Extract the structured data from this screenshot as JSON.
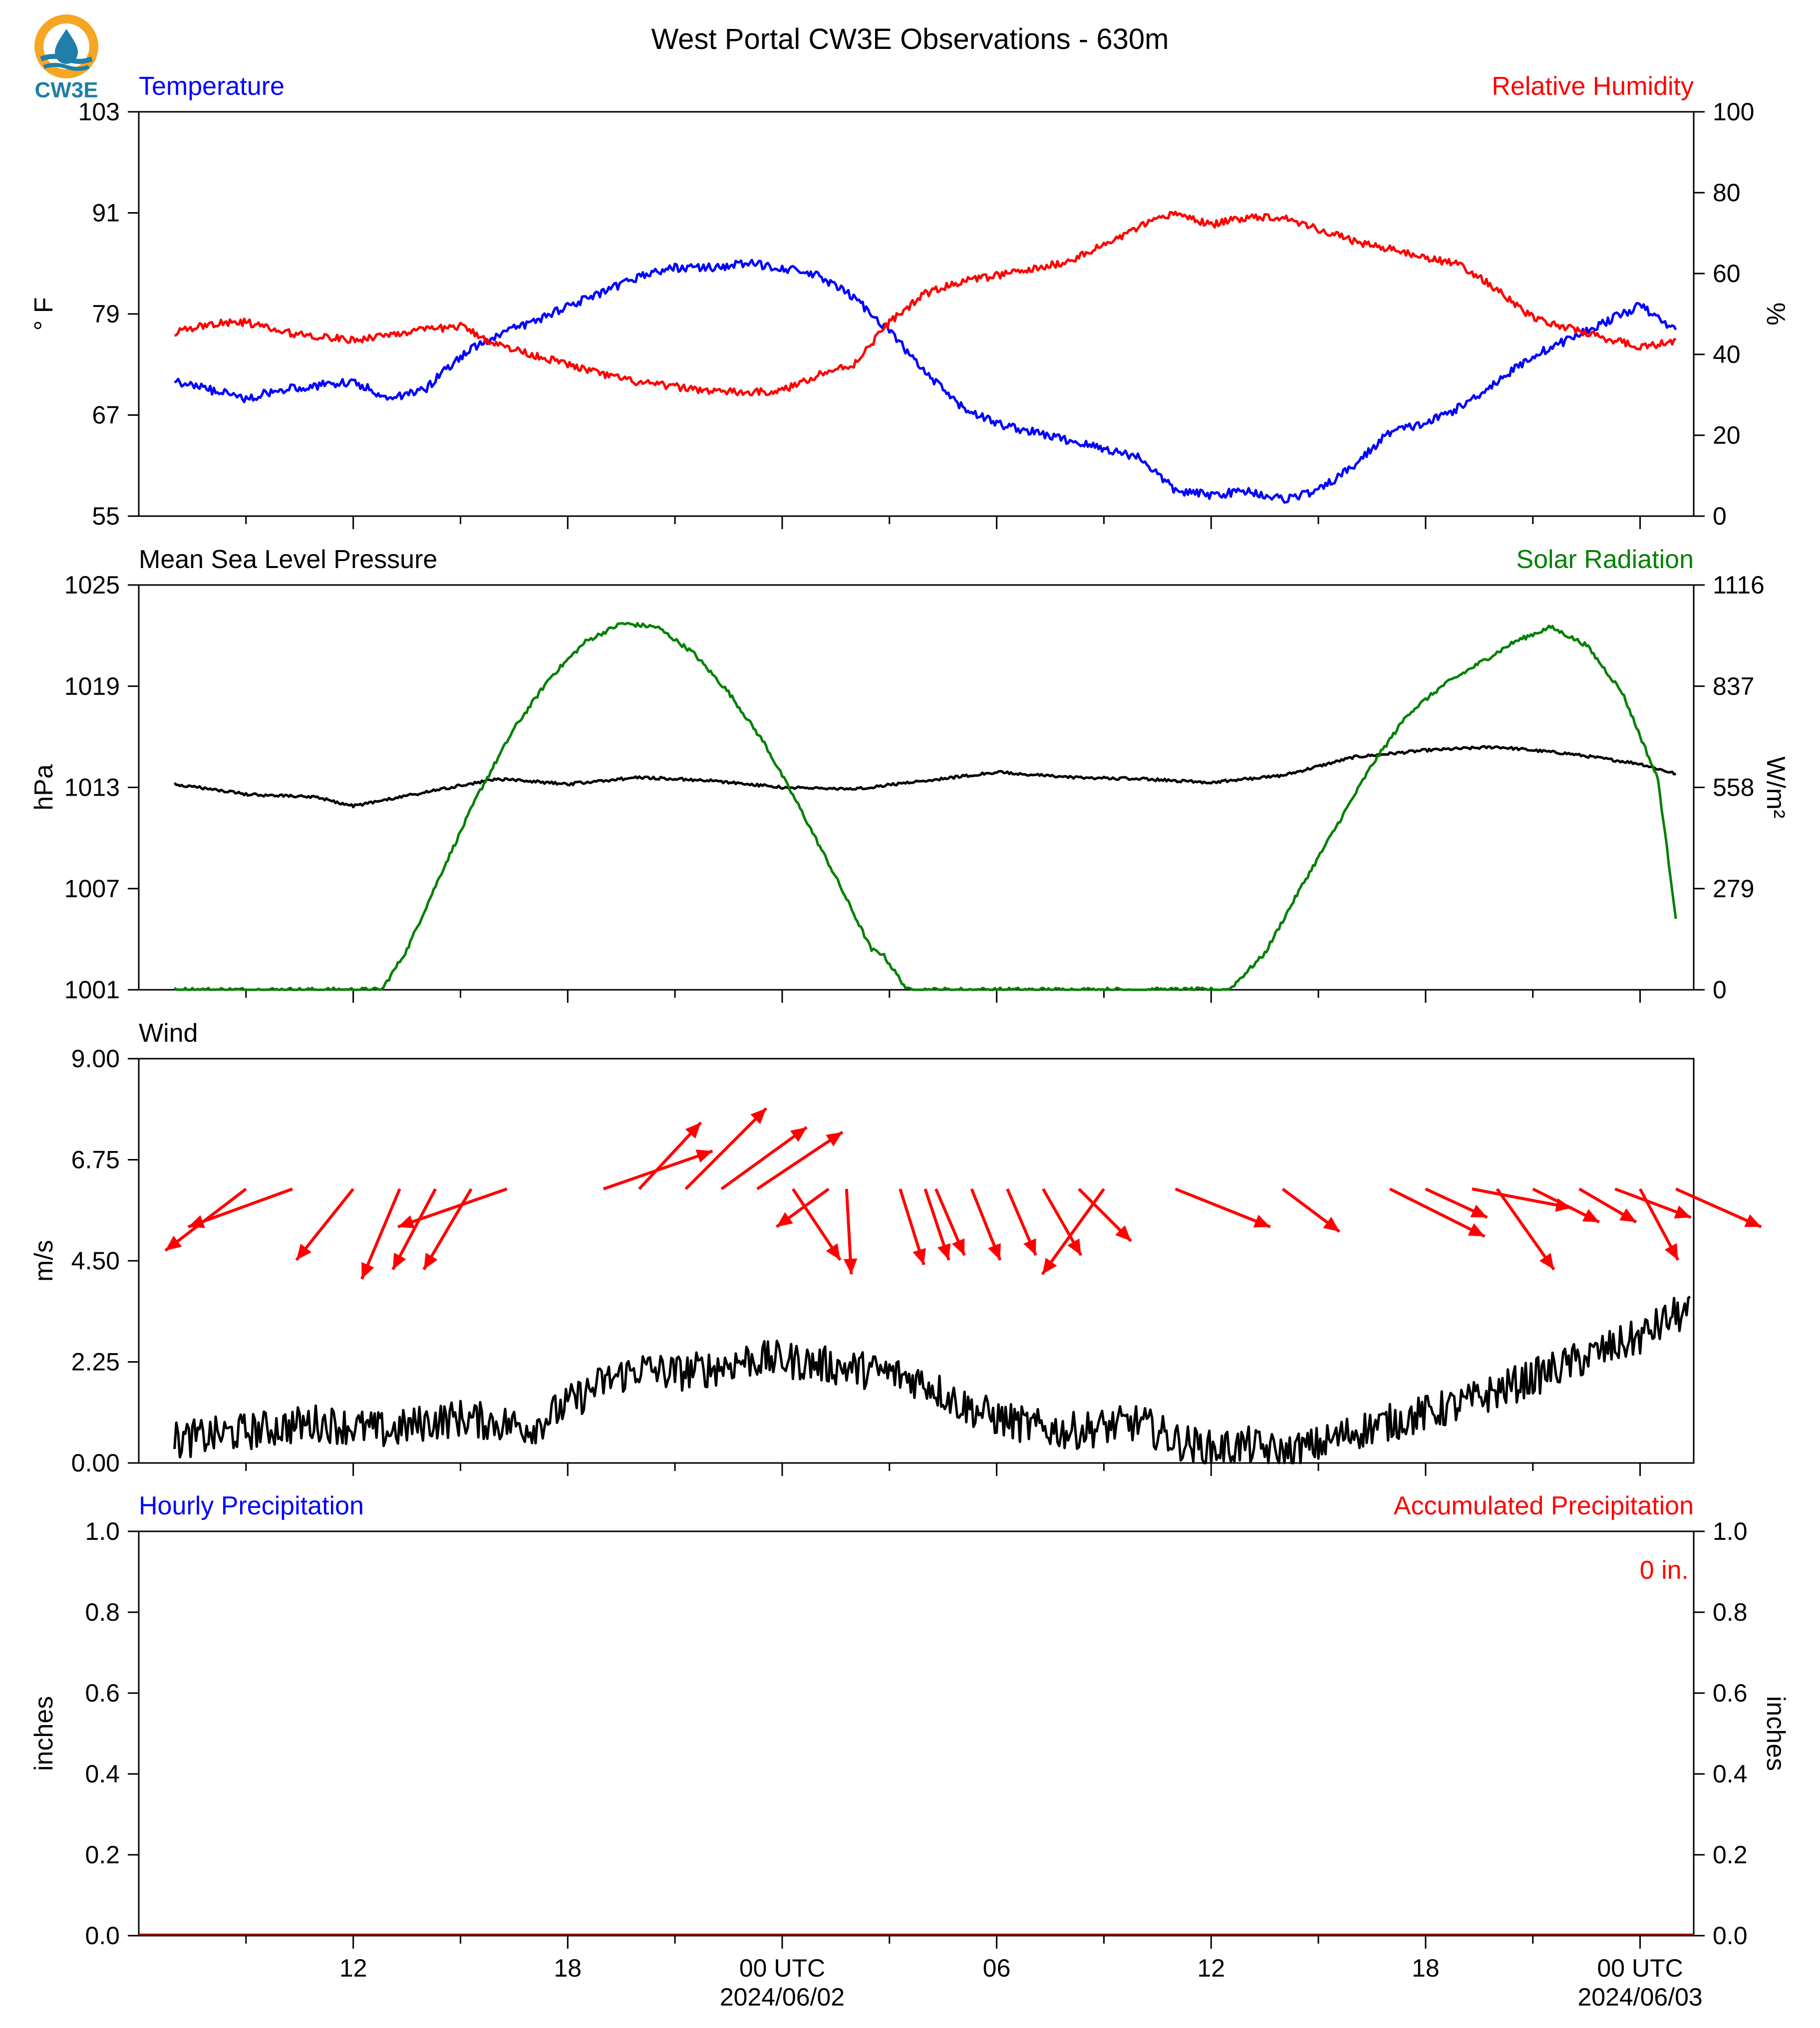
{
  "title": "West Portal CW3E Observations - 630m",
  "logo": {
    "text": "CW3E",
    "colors": {
      "ring": "#f5a623",
      "drop": "#1f7fa8"
    }
  },
  "colors": {
    "temperature": "#0000ff",
    "humidity": "#ff0000",
    "pressure": "#000000",
    "solar": "#008000",
    "wind": "#000000",
    "arrows": "#ff0000"
  },
  "x_axis": {
    "hours": [
      12,
      18,
      0,
      6,
      12,
      18,
      0
    ],
    "labels": [
      "12",
      "18",
      "00 UTC",
      "06",
      "12",
      "18",
      "00 UTC"
    ],
    "date_labels": [
      "",
      "",
      "2024/06/02",
      "",
      "",
      "",
      "2024/06/03"
    ]
  },
  "chart_data": [
    {
      "type": "line",
      "left_title": "Temperature",
      "right_title": "Relative Humidity",
      "ylabel": "° F",
      "ylabel_right": "%",
      "ylim": [
        55,
        103
      ],
      "yticks": [
        "55",
        "67",
        "79",
        "91",
        "103"
      ],
      "ylim_right": [
        0,
        100
      ],
      "yticks_right": [
        "0",
        "20",
        "40",
        "60",
        "80",
        "100"
      ],
      "x_hours": [
        7,
        8,
        9,
        10,
        11,
        12,
        13,
        14,
        15,
        16,
        17,
        18,
        19,
        20,
        21,
        22,
        23,
        24,
        25,
        26,
        27,
        28,
        29,
        30,
        31,
        32,
        33,
        34,
        35,
        36,
        37,
        38,
        39,
        40,
        41,
        42,
        43,
        44,
        45,
        46,
        47,
        48,
        49
      ],
      "series": [
        {
          "name": "Temperature",
          "axis": "left",
          "values": [
            71,
            70,
            69,
            70,
            70.5,
            71,
            69,
            70,
            74,
            76.5,
            78,
            80,
            81.5,
            83.5,
            84.5,
            84.5,
            85,
            84.5,
            83.5,
            81,
            77,
            72,
            68,
            66,
            65,
            64,
            63,
            62,
            58,
            57.5,
            58,
            57,
            58,
            61,
            65,
            66,
            68,
            71,
            74,
            76,
            78,
            80,
            77
          ]
        },
        {
          "name": "Relative Humidity",
          "axis": "right",
          "values": [
            45.5,
            47.5,
            48,
            45.5,
            44.5,
            43.5,
            45,
            46,
            47,
            42.5,
            40,
            37.5,
            35,
            33,
            32,
            31,
            30.5,
            31,
            35,
            37.5,
            48,
            55,
            58,
            59.5,
            61,
            63,
            67,
            71.5,
            75,
            72,
            74,
            74,
            71,
            68,
            66,
            64,
            62,
            56,
            49,
            46.5,
            44,
            42,
            43
          ]
        }
      ]
    },
    {
      "type": "line",
      "left_title": "Mean Sea Level Pressure",
      "right_title": "Solar Radiation",
      "ylabel": "hPa",
      "ylabel_right": "W/m²",
      "ylim": [
        1001,
        1025
      ],
      "yticks": [
        "1001",
        "1007",
        "1013",
        "1019",
        "1025"
      ],
      "ylim_right": [
        0,
        1116
      ],
      "yticks_right": [
        "0",
        "279",
        "558",
        "837",
        "1116"
      ],
      "series": [
        {
          "name": "Mean Sea Level Pressure",
          "axis": "left",
          "x_hours": [
            7,
            9,
            11,
            12,
            14,
            16,
            18,
            20,
            22,
            24,
            26,
            28,
            30,
            32,
            34,
            36,
            38,
            40,
            42,
            44,
            46,
            48,
            49
          ],
          "values": [
            1013.2,
            1012.6,
            1012.4,
            1011.9,
            1012.7,
            1013.5,
            1013.2,
            1013.6,
            1013.4,
            1013.0,
            1012.9,
            1013.4,
            1013.9,
            1013.6,
            1013.5,
            1013.3,
            1013.7,
            1014.8,
            1015.2,
            1015.4,
            1015.0,
            1014.4,
            1013.8
          ]
        },
        {
          "name": "Solar Radiation",
          "axis": "right",
          "x_hours": [
            7,
            12.8,
            13.5,
            14.5,
            15.5,
            16.5,
            17.5,
            18.5,
            19.5,
            20.5,
            21.5,
            22.5,
            23.5,
            24.5,
            25.5,
            26.5,
            26.8,
            27.5,
            28.2,
            29,
            30,
            31,
            32,
            33,
            33.8,
            34.5,
            35.5,
            36.5,
            37.5,
            38.5,
            39.5,
            40.5,
            41.5,
            42.5,
            43.5,
            44.5,
            45.5,
            46.5,
            47.5,
            48.5,
            49
          ],
          "values": [
            0,
            0,
            110,
            330,
            540,
            720,
            860,
            960,
            1010,
            1000,
            930,
            820,
            680,
            500,
            310,
            110,
            100,
            0,
            0,
            0,
            0,
            0,
            0,
            0,
            0,
            0,
            0,
            0,
            100,
            280,
            450,
            620,
            760,
            840,
            900,
            960,
            1000,
            950,
            820,
            580,
            200
          ]
        }
      ]
    },
    {
      "type": "line",
      "left_title": "Wind",
      "ylabel": "m/s",
      "ylim": [
        0,
        9
      ],
      "yticks": [
        "0.00",
        "2.25",
        "4.50",
        "6.75",
        "9.00"
      ],
      "series": [
        {
          "name": "Wind speed",
          "axis": "left",
          "x_hours": [
            7,
            8,
            9,
            10,
            11,
            12,
            13,
            14,
            15,
            16,
            17,
            18,
            19,
            20,
            21,
            22,
            23,
            24,
            25,
            26,
            27,
            28,
            29,
            30,
            31,
            32,
            33,
            34,
            35,
            36,
            37,
            38,
            39,
            40,
            41,
            42,
            43,
            44,
            45,
            46,
            47,
            48,
            49
          ],
          "values": [
            0.5,
            0.6,
            0.7,
            0.8,
            0.9,
            0.8,
            0.7,
            0.9,
            1.0,
            0.9,
            0.8,
            1.3,
            1.8,
            2.1,
            2.0,
            2.1,
            2.3,
            2.3,
            2.2,
            2.1,
            2.0,
            1.8,
            1.3,
            1.0,
            0.8,
            0.7,
            0.8,
            0.9,
            0.5,
            0.3,
            0.4,
            0.2,
            0.4,
            0.7,
            0.9,
            1.1,
            1.3,
            1.6,
            1.9,
            2.2,
            2.5,
            2.8,
            3.3
          ]
        }
      ],
      "arrows": {
        "x_hours": [
          9.0,
          10.3,
          12.0,
          13.3,
          14.3,
          15.3,
          16.3,
          19.0,
          20.0,
          21.3,
          22.3,
          23.3,
          24.3,
          25.3,
          25.8,
          27.3,
          28.0,
          28.3,
          29.3,
          30.3,
          31.3,
          32.3,
          33.0,
          35.0,
          38.0,
          41.0,
          42.0,
          43.3,
          44.0,
          45.0,
          46.3,
          47.3,
          48.0,
          49.0
        ],
        "u": [
          -1.7,
          -2.2,
          -1.2,
          -0.8,
          -0.9,
          -1.0,
          -2.3,
          2.3,
          1.3,
          1.7,
          1.8,
          1.8,
          1.0,
          -1.1,
          0.1,
          0.5,
          0.5,
          0.6,
          0.6,
          0.6,
          0.8,
          1.1,
          -1.3,
          2.0,
          1.2,
          2.0,
          1.3,
          2.1,
          1.2,
          1.4,
          1.2,
          1.6,
          0.8,
          1.8
        ],
        "v": [
          -1.3,
          -0.8,
          -1.5,
          -1.9,
          -1.7,
          -1.7,
          -0.8,
          0.8,
          1.4,
          1.7,
          1.3,
          1.2,
          -1.5,
          -0.8,
          -1.8,
          -1.6,
          -1.5,
          -1.4,
          -1.5,
          -1.4,
          -1.4,
          -1.1,
          -1.8,
          -0.8,
          -0.9,
          -1.0,
          -0.6,
          -0.4,
          -1.7,
          -0.7,
          -0.7,
          -0.6,
          -1.5,
          -0.8
        ],
        "units": "m/s"
      }
    },
    {
      "type": "bar",
      "left_title": "Hourly Precipitation",
      "right_title": "Accumulated Precipitation",
      "ylabel": "inches",
      "ylabel_right": "inches",
      "ylim": [
        0,
        1
      ],
      "yticks": [
        "0.0",
        "0.2",
        "0.4",
        "0.6",
        "0.8",
        "1.0"
      ],
      "ylim_right": [
        0,
        1
      ],
      "yticks_right": [
        "0.0",
        "0.2",
        "0.4",
        "0.6",
        "0.8",
        "1.0"
      ],
      "annotation": "0 in.",
      "series": [
        {
          "name": "Hourly Precipitation",
          "values": [
            0
          ]
        },
        {
          "name": "Accumulated Precipitation",
          "values": [
            0
          ]
        }
      ]
    }
  ]
}
